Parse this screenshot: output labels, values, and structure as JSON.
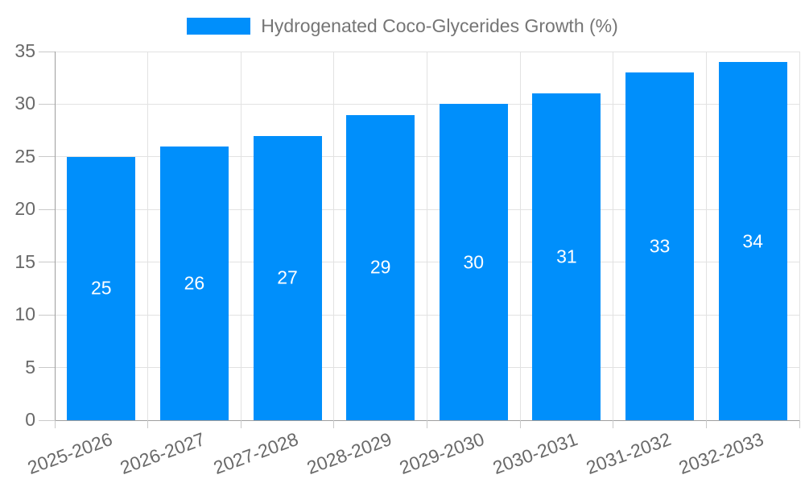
{
  "legend": {
    "label": "Hydrogenated Coco-Glycerides Growth (%)",
    "marker_color": "#008FFB"
  },
  "chart_data": {
    "type": "bar",
    "title": "Hydrogenated Coco-Glycerides Growth (%)",
    "categories": [
      "2025-2026",
      "2026-2027",
      "2027-2028",
      "2028-2029",
      "2029-2030",
      "2030-2031",
      "2031-2032",
      "2032-2033"
    ],
    "series": [
      {
        "name": "Hydrogenated Coco-Glycerides Growth (%)",
        "values": [
          25,
          26,
          27,
          29,
          30,
          31,
          33,
          34
        ]
      }
    ],
    "values": [
      25,
      26,
      27,
      29,
      30,
      31,
      33,
      34
    ],
    "value_labels": [
      "25",
      "26",
      "27",
      "29",
      "30",
      "31",
      "33",
      "34"
    ],
    "xlabel": "",
    "ylabel": "",
    "ylim": [
      0,
      35
    ],
    "yticks": [
      0,
      5,
      10,
      15,
      20,
      25,
      30,
      35
    ],
    "grid": true,
    "legend_position": "top",
    "bar_color": "#008FFB",
    "value_label_position": "inside-center",
    "value_label_color": "#FFFFFF"
  },
  "colors": {
    "background": "#FFFFFF",
    "bar": "#008FFB",
    "grid": "#E2E2E2",
    "axis_line": "#9E9E9E",
    "tick": "#C9C9C9",
    "axis_text": "#696969",
    "title_text": "#757575"
  }
}
